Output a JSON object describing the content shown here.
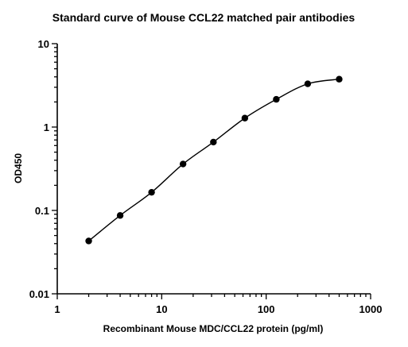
{
  "chart_data": {
    "type": "scatter",
    "title": "Standard curve of Mouse CCL22 matched pair antibodies",
    "xlabel": "Recombinant Mouse MDC/CCL22 protein (pg/ml)",
    "ylabel": "OD450",
    "xscale": "log",
    "yscale": "log",
    "xlim": [
      1,
      1000
    ],
    "ylim": [
      0.01,
      10
    ],
    "x_ticks": [
      {
        "value": 1,
        "label": "1"
      },
      {
        "value": 10,
        "label": "10"
      },
      {
        "value": 100,
        "label": "100"
      },
      {
        "value": 1000,
        "label": "1000"
      }
    ],
    "y_ticks": [
      {
        "value": 0.01,
        "label": "0.01"
      },
      {
        "value": 0.1,
        "label": "0.1"
      },
      {
        "value": 1,
        "label": "1"
      },
      {
        "value": 10,
        "label": "10"
      }
    ],
    "grid": false,
    "series": [
      {
        "marker": "circle",
        "color": "#000000",
        "fit": "sigmoidal curve",
        "x": [
          2,
          4,
          8,
          16,
          31.25,
          62.5,
          125,
          250,
          500
        ],
        "y": [
          0.043,
          0.087,
          0.165,
          0.36,
          0.66,
          1.28,
          2.15,
          3.3,
          3.75
        ]
      }
    ]
  }
}
